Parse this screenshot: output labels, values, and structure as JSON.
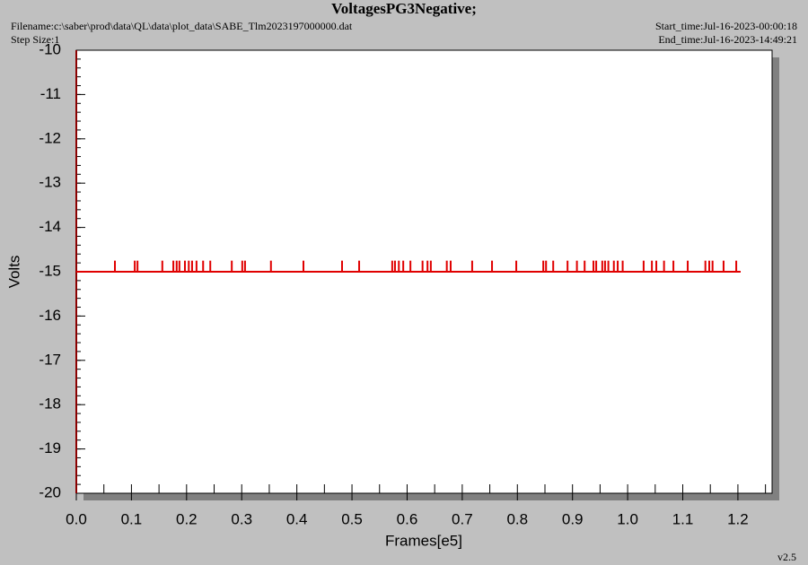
{
  "chart_data": {
    "type": "line",
    "title": "VoltagesPG3Negative;",
    "filename": "Filename:c:\\saber\\prod\\data\\QL\\data\\plot_data\\SABE_Tlm2023197000000.dat",
    "step_size": "Step Size:1",
    "start_time": "Start_time:Jul-16-2023-00:00:18",
    "end_time": "End_time:Jul-16-2023-14:49:21",
    "version": "v2.5",
    "x_label": "Frames[e5]",
    "y_label": "Volts",
    "xlim": [
      0,
      1.262
    ],
    "ylim": [
      -20,
      -10
    ],
    "xticks": [
      {
        "value": 0,
        "label": "0.0"
      },
      0.1,
      0.2,
      0.3,
      0.4,
      0.5,
      0.6,
      0.7,
      0.8,
      0.9,
      {
        "value": 1,
        "label": "1.0"
      },
      1.1,
      1.2
    ],
    "yticks": [
      -10,
      -11,
      -12,
      -13,
      -14,
      -15,
      -16,
      -17,
      -18,
      -19,
      -20
    ],
    "series": [
      {
        "color": "#e00000",
        "x": [
          0,
          1.205
        ],
        "values": [
          -15,
          -15
        ]
      },
      {
        "color": "#e00000",
        "x": [
          0.07,
          0.106,
          0.111,
          0.156,
          0.176,
          0.182,
          0.187,
          0.197,
          0.204,
          0.21,
          0.218,
          0.23,
          0.243,
          0.282,
          0.301,
          0.306,
          0.353,
          0.412,
          0.482,
          0.513,
          0.573,
          0.578,
          0.585,
          0.593,
          0.606,
          0.628,
          0.637,
          0.643,
          0.672,
          0.679,
          0.718,
          0.754,
          0.798,
          0.847,
          0.852,
          0.865,
          0.891,
          0.908,
          0.922,
          0.938,
          0.943,
          0.954,
          0.959,
          0.965,
          0.975,
          0.982,
          0.991,
          1.029,
          1.044,
          1.052,
          1.066,
          1.083,
          1.109,
          1.141,
          1.148,
          1.154,
          1.174,
          1.197
        ],
        "values": [
          -14.75,
          -14.75,
          -14.75,
          -14.75,
          -14.75,
          -14.75,
          -14.75,
          -14.75,
          -14.75,
          -14.75,
          -14.75,
          -14.75,
          -14.75,
          -14.75,
          -14.75,
          -14.75,
          -14.75,
          -14.75,
          -14.75,
          -14.75,
          -14.75,
          -14.75,
          -14.75,
          -14.75,
          -14.75,
          -14.75,
          -14.75,
          -14.75,
          -14.75,
          -14.75,
          -14.75,
          -14.75,
          -14.75,
          -14.75,
          -14.75,
          -14.75,
          -14.75,
          -14.75,
          -14.75,
          -14.75,
          -14.75,
          -14.75,
          -14.75,
          -14.75,
          -14.75,
          -14.75,
          -14.75,
          -14.75,
          -14.75,
          -14.75,
          -14.75,
          -14.75,
          -14.75,
          -14.75,
          -14.75,
          -14.75,
          -14.75,
          -14.75
        ]
      }
    ]
  }
}
